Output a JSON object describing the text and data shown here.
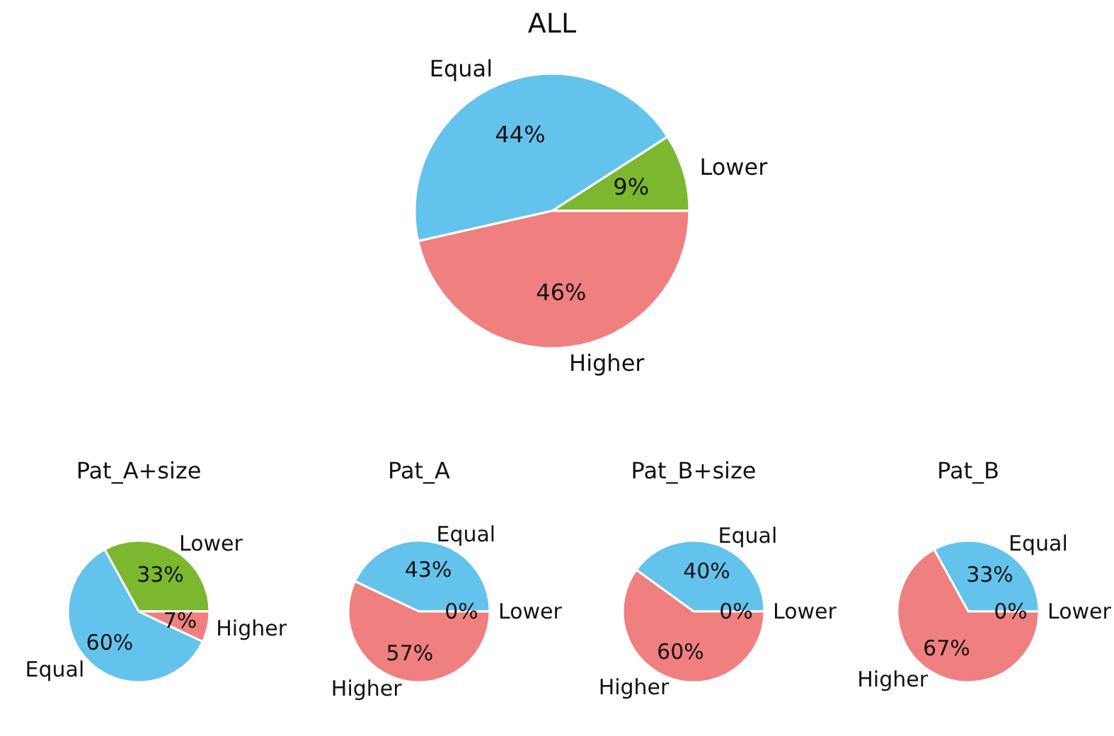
{
  "chart_data": [
    {
      "type": "pie",
      "title": "ALL",
      "categories": [
        "Lower",
        "Equal",
        "Higher"
      ],
      "values": [
        9,
        44,
        46
      ],
      "value_labels": [
        "9%",
        "44%",
        "46%"
      ],
      "colors": [
        "#7cb82f",
        "#63c3ec",
        "#f07f7f"
      ]
    },
    {
      "type": "pie",
      "title": "Pat_A+size",
      "categories": [
        "Lower",
        "Equal",
        "Higher"
      ],
      "values": [
        33,
        60,
        7
      ],
      "value_labels": [
        "33%",
        "60%",
        "7%"
      ],
      "colors": [
        "#7cb82f",
        "#63c3ec",
        "#f07f7f"
      ]
    },
    {
      "type": "pie",
      "title": "Pat_A",
      "categories": [
        "Lower",
        "Equal",
        "Higher"
      ],
      "values": [
        0,
        43,
        57
      ],
      "value_labels": [
        "0%",
        "43%",
        "57%"
      ],
      "colors": [
        "#7cb82f",
        "#63c3ec",
        "#f07f7f"
      ]
    },
    {
      "type": "pie",
      "title": "Pat_B+size",
      "categories": [
        "Lower",
        "Equal",
        "Higher"
      ],
      "values": [
        0,
        40,
        60
      ],
      "value_labels": [
        "0%",
        "40%",
        "60%"
      ],
      "colors": [
        "#7cb82f",
        "#63c3ec",
        "#f07f7f"
      ]
    },
    {
      "type": "pie",
      "title": "Pat_B",
      "categories": [
        "Lower",
        "Equal",
        "Higher"
      ],
      "values": [
        0,
        33,
        67
      ],
      "value_labels": [
        "0%",
        "33%",
        "67%"
      ],
      "colors": [
        "#7cb82f",
        "#63c3ec",
        "#f07f7f"
      ]
    }
  ]
}
